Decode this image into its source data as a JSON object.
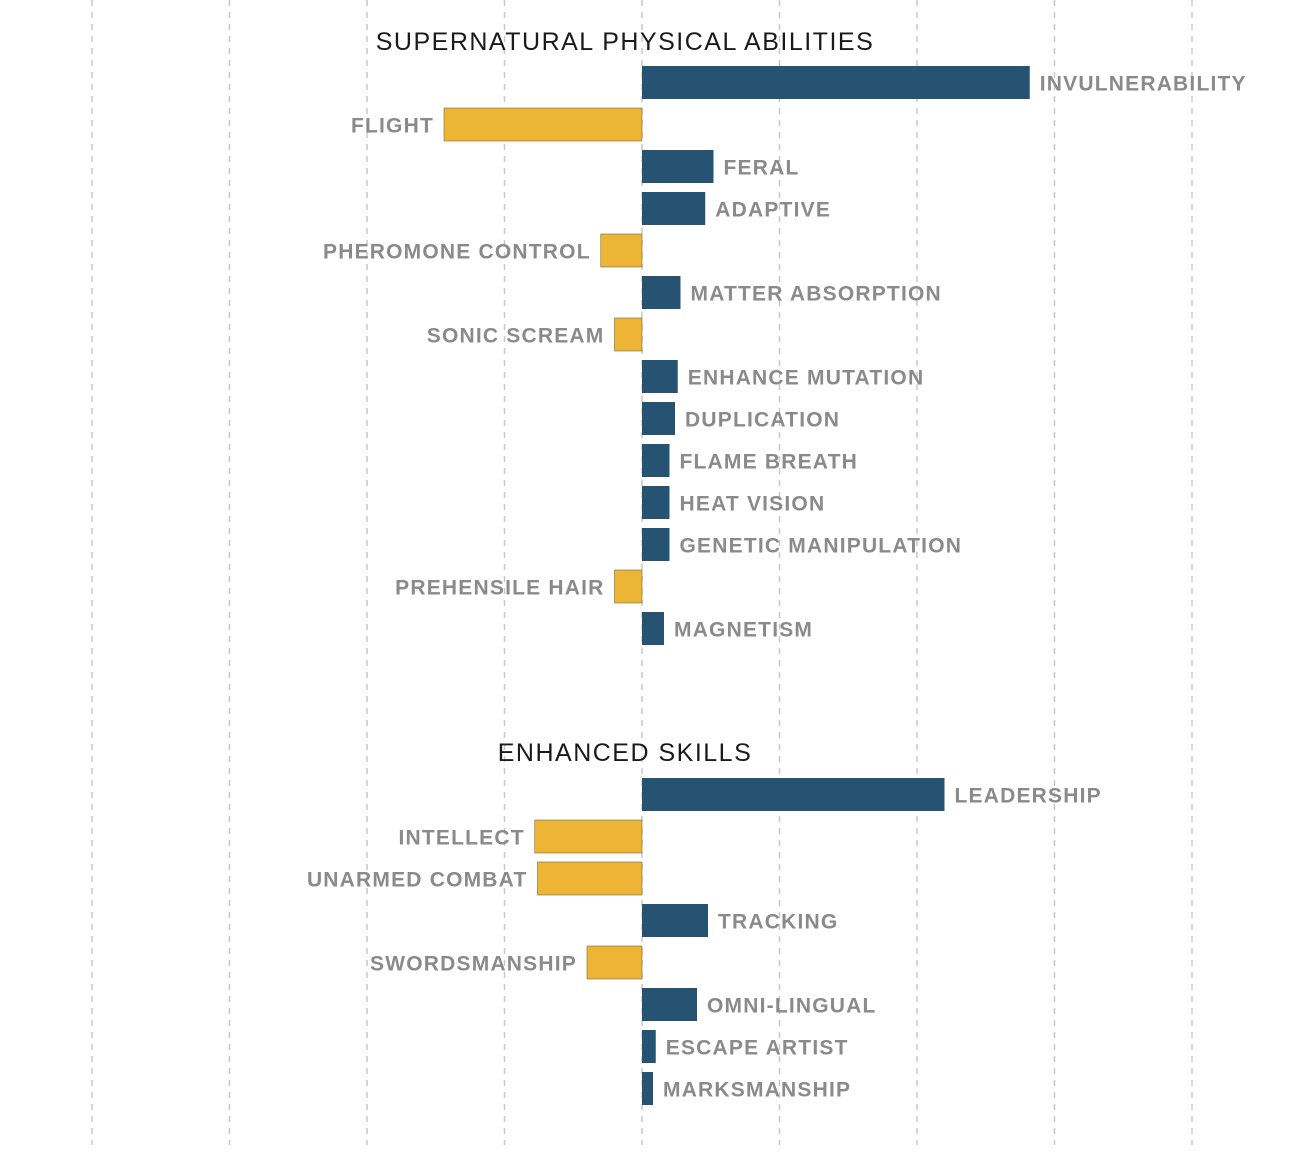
{
  "chart_data": {
    "type": "bar",
    "orientation": "horizontal-diverging",
    "colors": {
      "positive": "#275372",
      "negative": "#EDB535",
      "grid": "#c8c8c8",
      "label": "#8a8a8a",
      "title": "#1a1a1a"
    },
    "xlim": [
      -20,
      20
    ],
    "grid_ticks": [
      -20,
      -15,
      -10,
      -5,
      0,
      5,
      10,
      15,
      20
    ],
    "sections": [
      {
        "title": "SUPERNATURAL PHYSICAL ABILITIES",
        "categories": [
          "INVULNERABILITY",
          "FLIGHT",
          "FERAL",
          "ADAPTIVE",
          "PHEROMONE CONTROL",
          "MATTER ABSORPTION",
          "SONIC SCREAM",
          "ENHANCE MUTATION",
          "DUPLICATION",
          "FLAME BREATH",
          "HEAT VISION",
          "GENETIC MANIPULATION",
          "PREHENSILE HAIR",
          "MAGNETISM"
        ],
        "values": [
          14.1,
          -7.2,
          2.6,
          2.3,
          -1.5,
          1.4,
          -1.0,
          1.3,
          1.2,
          1.0,
          1.0,
          1.0,
          -1.0,
          0.8
        ]
      },
      {
        "title": "ENHANCED SKILLS",
        "categories": [
          "LEADERSHIP",
          "INTELLECT",
          "UNARMED COMBAT",
          "TRACKING",
          "SWORDSMANSHIP",
          "OMNI-LINGUAL",
          "ESCAPE ARTIST",
          "MARKSMANSHIP"
        ],
        "values": [
          11.0,
          -3.9,
          -3.8,
          2.4,
          -2.0,
          2.0,
          0.5,
          0.4
        ]
      }
    ]
  }
}
